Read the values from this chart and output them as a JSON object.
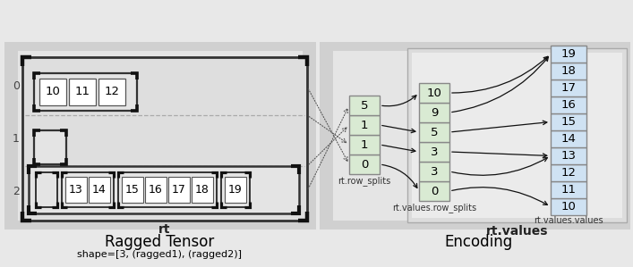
{
  "row0_values": [
    "10",
    "11",
    "12"
  ],
  "row_splits_values": [
    "0",
    "1",
    "1",
    "5"
  ],
  "rt_values_row_splits": [
    "0",
    "3",
    "3",
    "5",
    "9",
    "10"
  ],
  "rt_values_values": [
    "10",
    "11",
    "12",
    "13",
    "14",
    "15",
    "16",
    "17",
    "18",
    "19"
  ],
  "cell_green_bg": "#d9ead3",
  "cell_blue_bg": "#cfe2f3",
  "title_left": "Ragged Tensor",
  "subtitle_left": "shape=[3, (ragged1), (ragged2)]",
  "title_right": "Encoding",
  "label_rt": "rt",
  "label_row_splits": "rt.row_splits",
  "label_values_row_splits": "rt.values.row_splits",
  "label_values_values": "rt.values.values",
  "label_rt_values": "rt.values",
  "left_bg_color": "#c8c8c8",
  "left_inner_color": "#e0e0e0",
  "right_bg_color": "#d0d0d0",
  "right_inner_color": "#e8e8e8"
}
